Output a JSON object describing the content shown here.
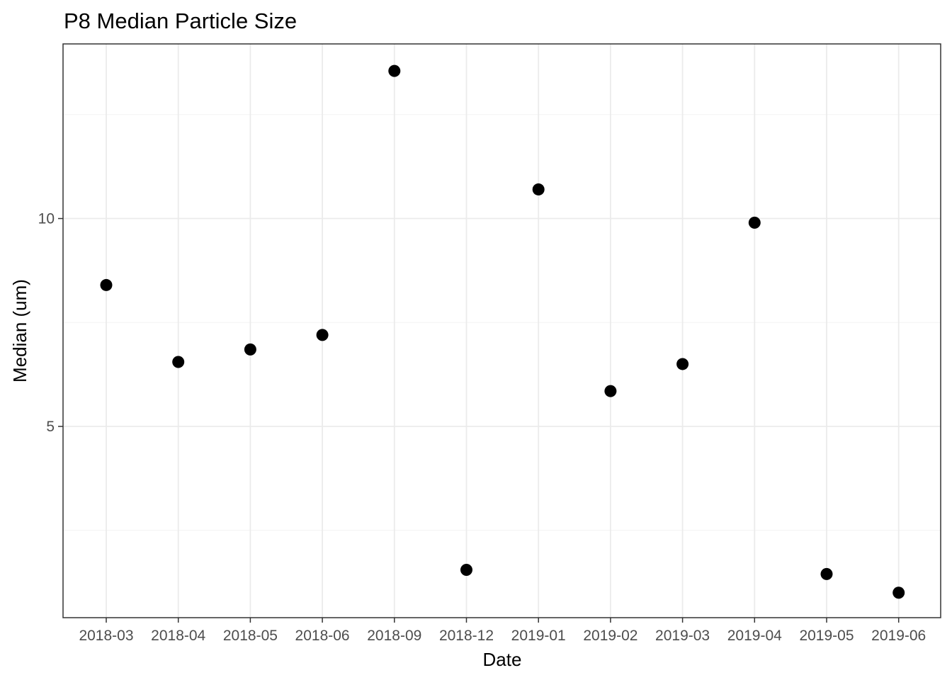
{
  "chart_data": {
    "type": "scatter",
    "title": "P8 Median Particle Size",
    "xlabel": "Date",
    "ylabel": "Median (um)",
    "x_scale": "categorical",
    "categories": [
      "2018-03",
      "2018-04",
      "2018-05",
      "2018-06",
      "2018-09",
      "2018-12",
      "2019-01",
      "2019-02",
      "2019-03",
      "2019-04",
      "2019-05",
      "2019-06"
    ],
    "series": [
      {
        "values": [
          8.4,
          6.55,
          6.85,
          7.2,
          13.55,
          1.55,
          10.7,
          5.85,
          6.5,
          9.9,
          1.45,
          1.0
        ]
      }
    ],
    "ylim": [
      0.4,
      14.2
    ],
    "y_major_ticks": [
      5,
      10
    ],
    "y_minor_ticks": [
      2.5,
      7.5,
      12.5
    ],
    "grid": true,
    "legend": "none",
    "point_color": "#000000"
  }
}
